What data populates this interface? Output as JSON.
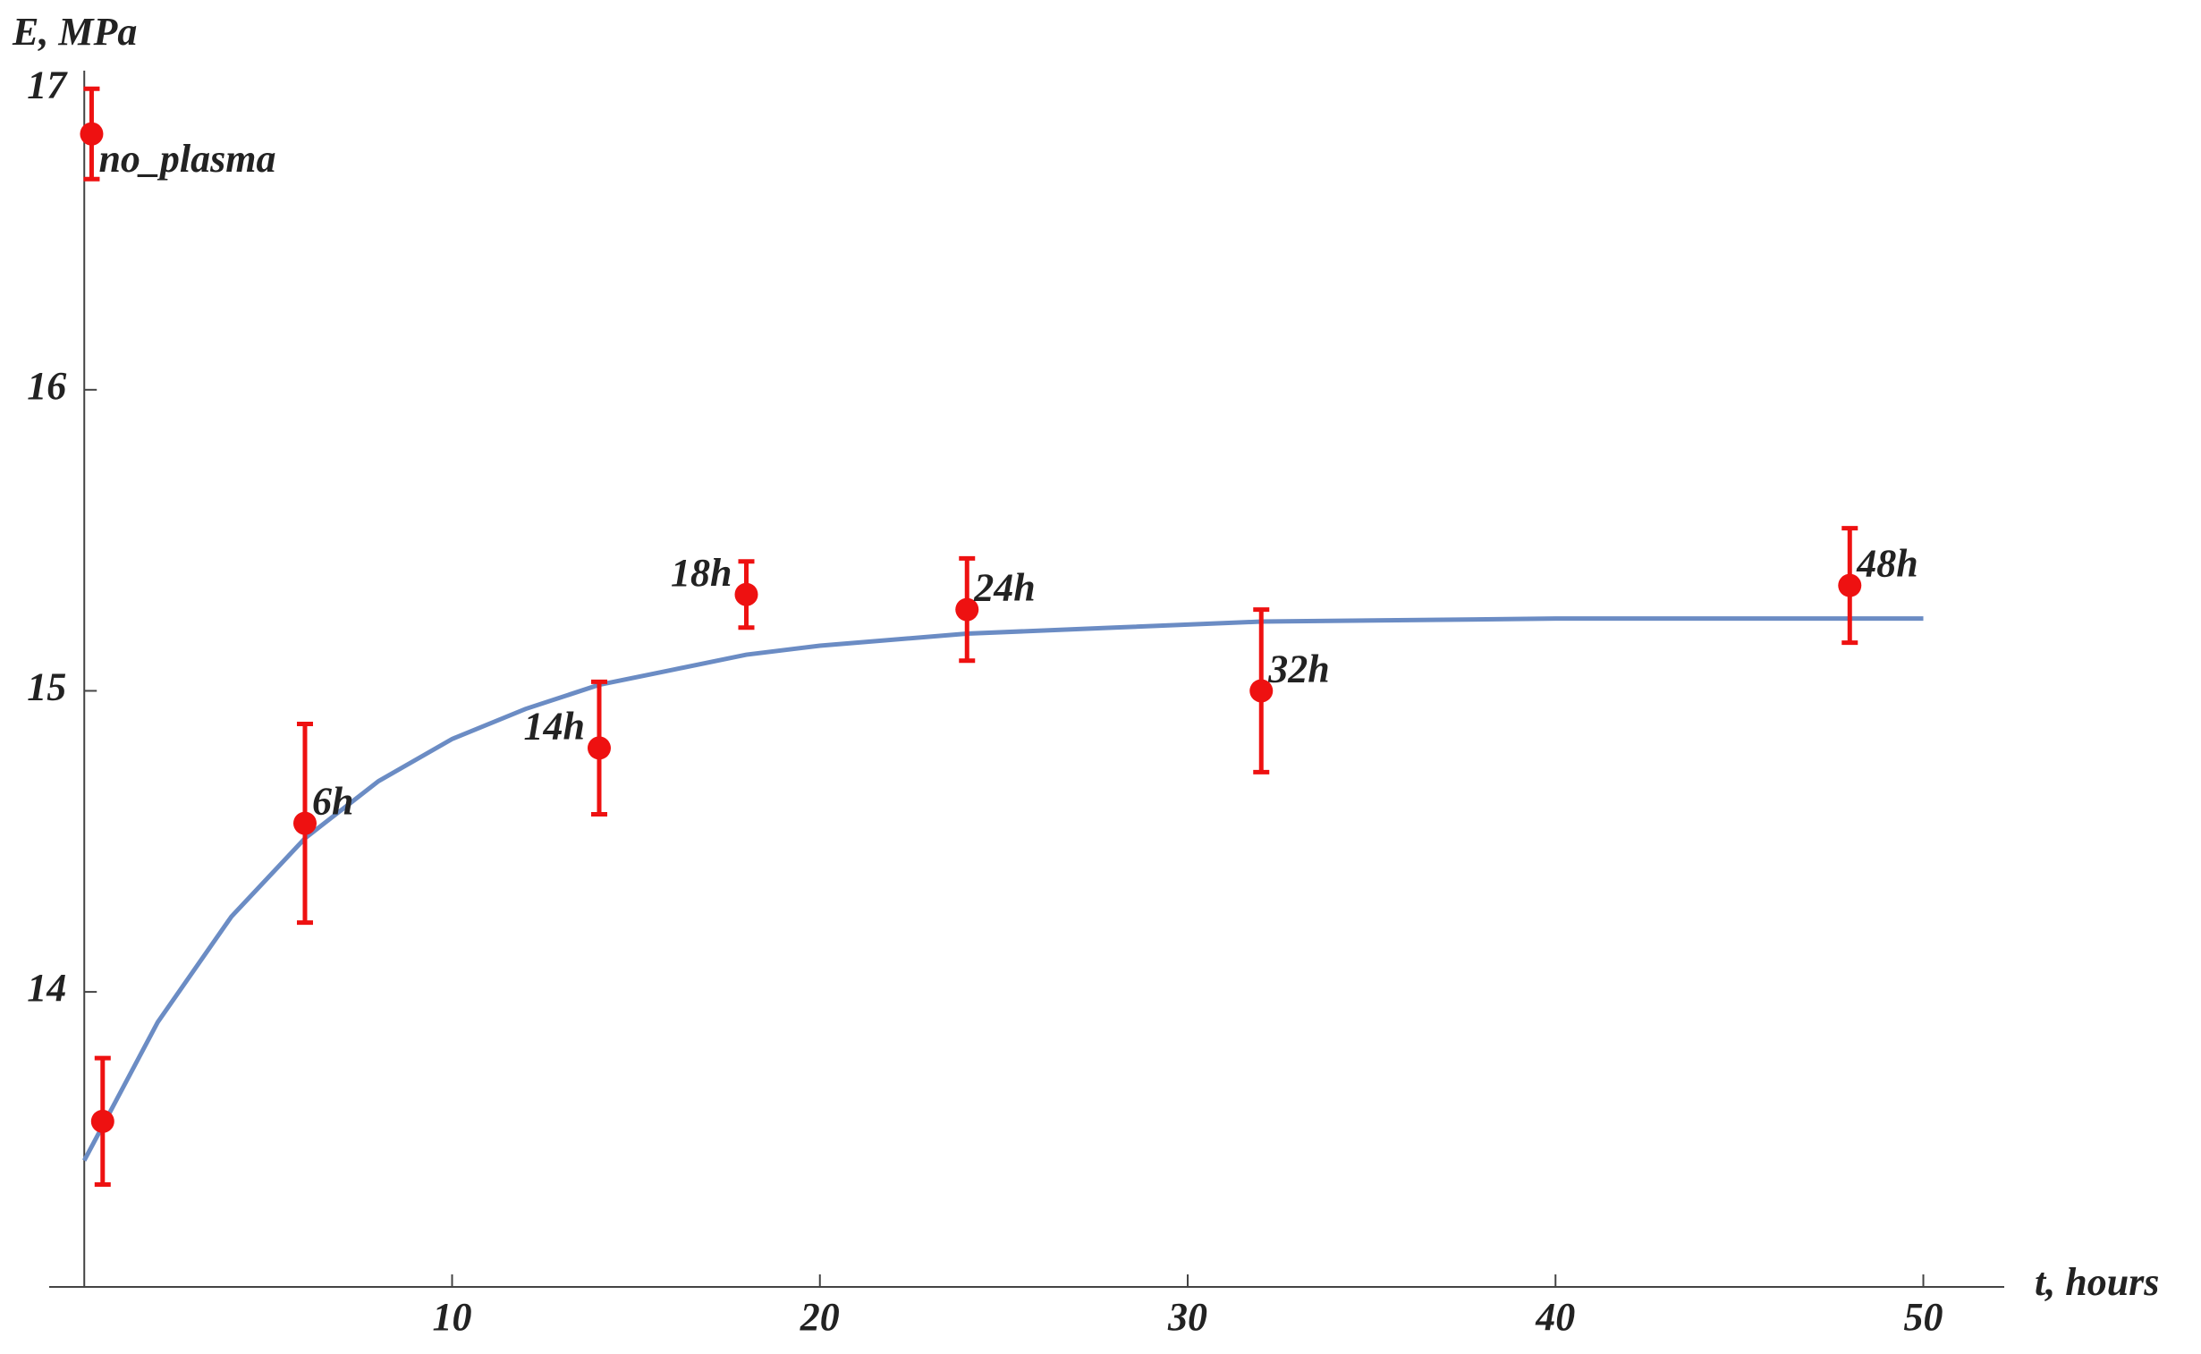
{
  "chart_data": {
    "type": "scatter",
    "x_label": "t, hours",
    "y_label": "E, MPa",
    "x": [
      0.2,
      0.5,
      6,
      14,
      18,
      24,
      32,
      48
    ],
    "values": [
      16.85,
      13.57,
      14.56,
      14.81,
      15.32,
      15.27,
      15.0,
      15.35
    ],
    "errors": [
      0.15,
      0.21,
      0.33,
      0.22,
      0.11,
      0.17,
      0.27,
      0.19
    ],
    "labels": [
      "no_plasma",
      null,
      "6h",
      "14h",
      "18h",
      "24h",
      "32h",
      "48h"
    ],
    "color": "#ee1111",
    "fit": {
      "color": "#6b8cc4",
      "x": [
        0,
        2,
        4,
        6,
        8,
        10,
        12,
        14,
        16,
        18,
        20,
        24,
        28,
        32,
        40,
        50
      ],
      "values": [
        13.44,
        13.9,
        14.25,
        14.51,
        14.7,
        14.84,
        14.94,
        15.02,
        15.07,
        15.12,
        15.15,
        15.19,
        15.21,
        15.23,
        15.24,
        15.24
      ]
    },
    "xlim": [
      -0.2,
      52.2
    ],
    "ylim": [
      13.02,
      17.06
    ],
    "xticks": [
      10,
      20,
      30,
      40,
      50
    ],
    "yticks": [
      14,
      15,
      16,
      17
    ]
  }
}
